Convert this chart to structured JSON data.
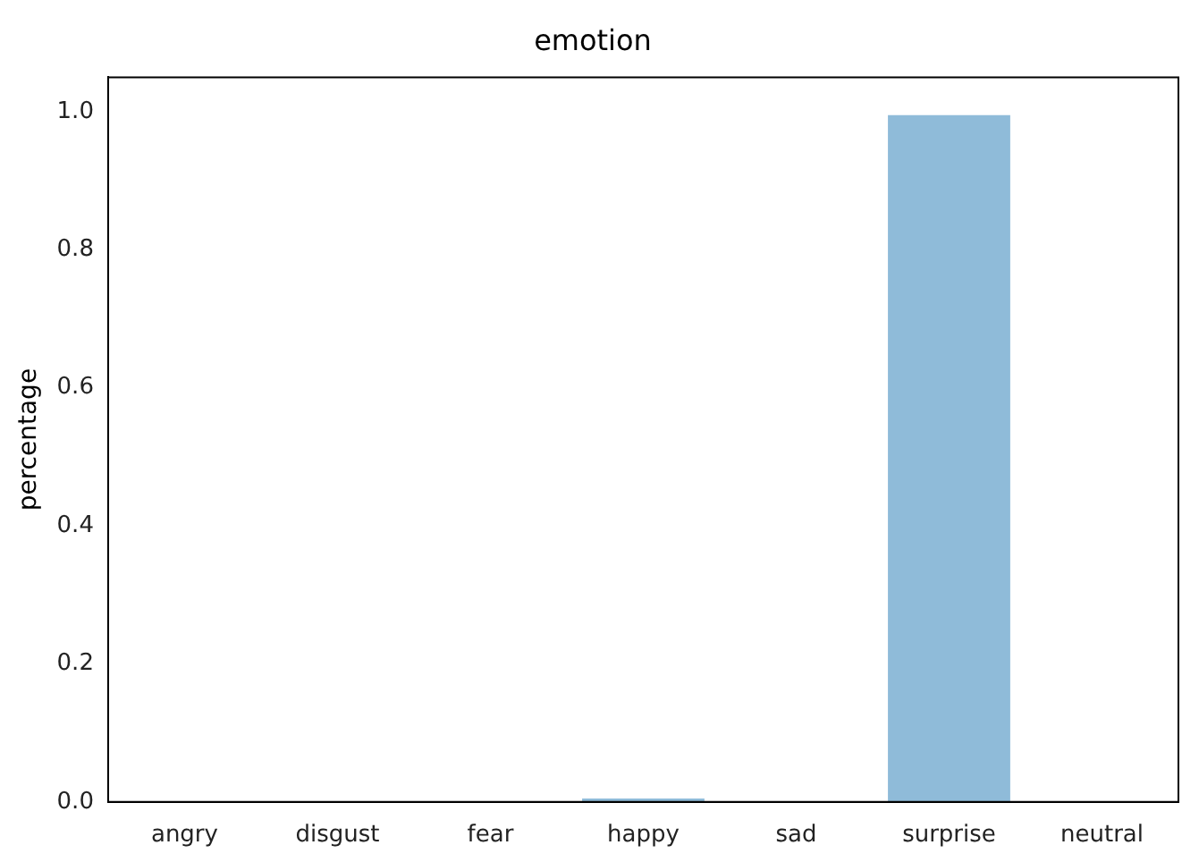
{
  "chart_data": {
    "type": "bar",
    "title": "emotion",
    "ylabel": "percentage",
    "categories": [
      "angry",
      "disgust",
      "fear",
      "happy",
      "sad",
      "surprise",
      "neutral"
    ],
    "values": [
      0,
      0,
      0,
      0.005,
      0,
      0.995,
      0
    ],
    "color": "#8fbbd9",
    "ylim": [
      0,
      1.05
    ],
    "yticks": [
      {
        "value": 0,
        "label": "0.0"
      },
      {
        "value": 0.2,
        "label": "0.2"
      },
      {
        "value": 0.4,
        "label": "0.4"
      },
      {
        "value": 0.6,
        "label": "0.6"
      },
      {
        "value": 0.8,
        "label": "0.8"
      },
      {
        "value": 1,
        "label": "1.0"
      }
    ],
    "grid": false,
    "legend": false
  }
}
